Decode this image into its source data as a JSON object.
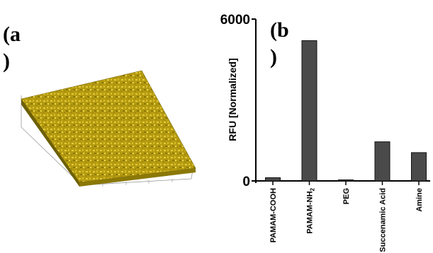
{
  "panels": {
    "a": {
      "label_open": "(a",
      "label_close": ")"
    },
    "b": {
      "label_open": "(b",
      "label_close": ")"
    }
  },
  "colors": {
    "bar": "#4a4a4a",
    "surface_base": "#b59a10",
    "surface_light": "#e2cd3a",
    "surface_dark": "#7a6a08"
  },
  "chart_data": {
    "type": "bar",
    "title": "",
    "xlabel": "",
    "ylabel": "RFU [Normalized]",
    "ylim": [
      0,
      6000
    ],
    "yticks": [
      0,
      6000
    ],
    "categories": [
      "PAMAM-COOH",
      "PAMAM-NH2",
      "PEG",
      "Succenamic Acid",
      "Amine"
    ],
    "values": [
      120,
      5200,
      40,
      1450,
      1050
    ],
    "grid": false,
    "legend": "none"
  }
}
